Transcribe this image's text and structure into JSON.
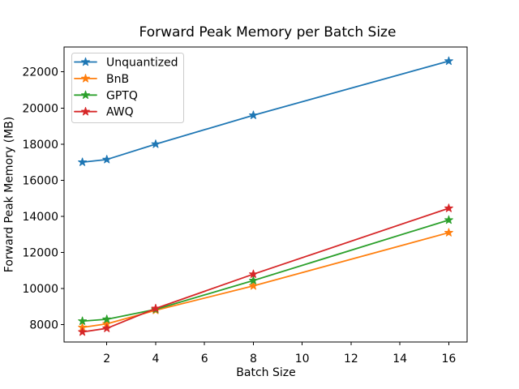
{
  "figure": {
    "background": "#ffffff",
    "axis_color": "#000000"
  },
  "chart_data": {
    "type": "line",
    "title": "Forward Peak Memory per Batch Size",
    "xlabel": "Batch Size",
    "ylabel": "Forward Peak Memory (MB)",
    "x": [
      1,
      2,
      4,
      8,
      16
    ],
    "series": [
      {
        "name": "Unquantized",
        "color": "#1f77b4",
        "values": [
          17000,
          17150,
          18000,
          19600,
          22600
        ]
      },
      {
        "name": "BnB",
        "color": "#ff7f0e",
        "values": [
          7850,
          8050,
          8800,
          10150,
          13100
        ]
      },
      {
        "name": "GPTQ",
        "color": "#2ca02c",
        "values": [
          8200,
          8300,
          8850,
          10450,
          13800
        ]
      },
      {
        "name": "AWQ",
        "color": "#d62728",
        "values": [
          7600,
          7800,
          8900,
          10800,
          14450
        ]
      }
    ],
    "xlim": [
      0.25,
      16.75
    ],
    "ylim": [
      7044,
      23380
    ],
    "xticks": [
      2,
      4,
      6,
      8,
      10,
      12,
      14,
      16
    ],
    "yticks": [
      8000,
      10000,
      12000,
      14000,
      16000,
      18000,
      20000,
      22000
    ],
    "grid": false,
    "marker": "star",
    "legend_position": "upper-left",
    "legend_border_color": "#cccccc",
    "legend_background": "rgba(255,255,255,0.8)"
  }
}
